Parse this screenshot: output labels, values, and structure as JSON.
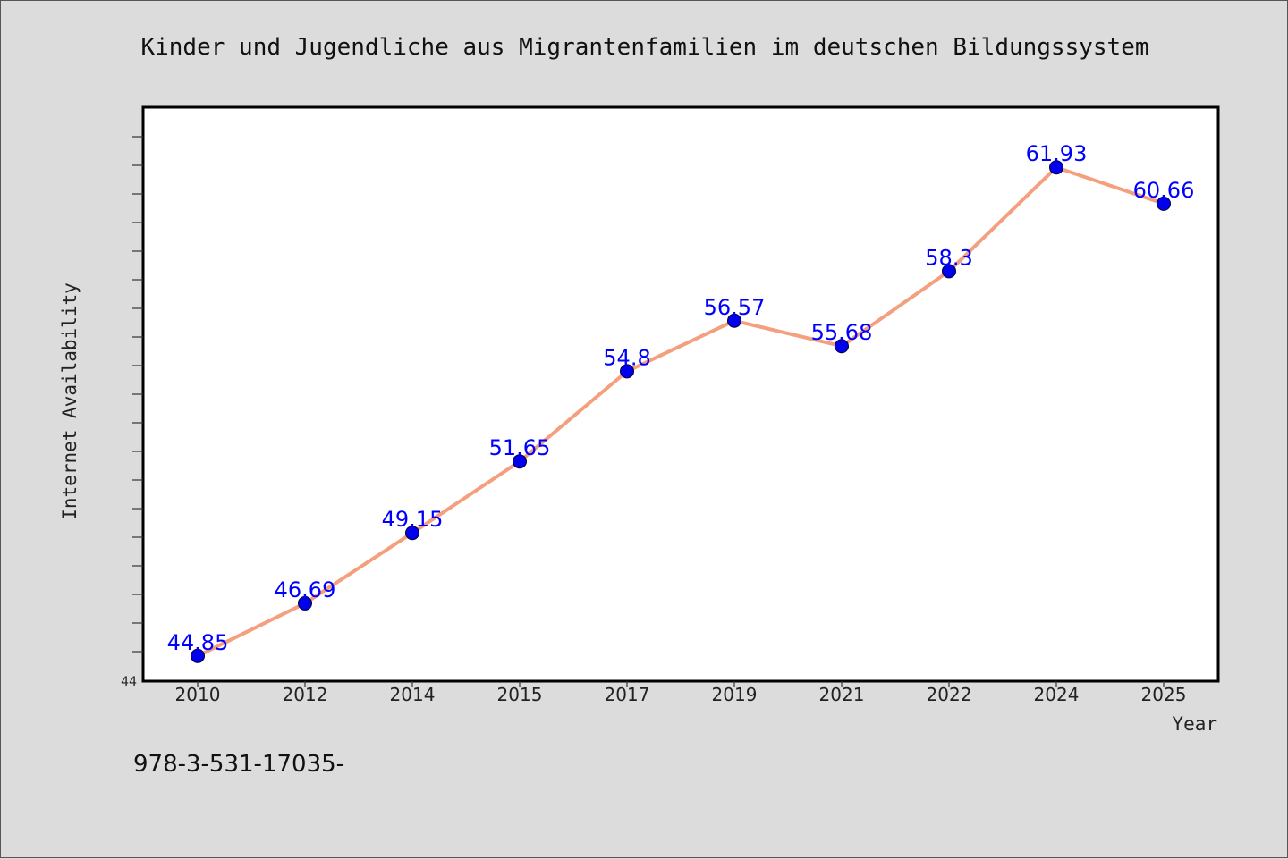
{
  "chart_data": {
    "type": "line",
    "title": "Kinder und Jugendliche aus Migrantenfamilien im deutschen Bildungssystem",
    "xlabel": "Year",
    "ylabel": "Internet Availability",
    "categories": [
      "2010",
      "2012",
      "2014",
      "2015",
      "2017",
      "2019",
      "2021",
      "2022",
      "2024",
      "2025"
    ],
    "series": [
      {
        "values": [
          44.85,
          46.69,
          49.15,
          51.65,
          54.8,
          56.57,
          55.68,
          58.3,
          61.93,
          60.66
        ],
        "labels": [
          "44.85",
          "46.69",
          "49.15",
          "51.65",
          "54.8",
          "56.57",
          "55.68",
          "58.3",
          "61.93",
          "60.66"
        ]
      }
    ],
    "ylim": [
      44,
      64
    ],
    "yticks_labeled": [
      "44"
    ],
    "grid": false,
    "legend": "none",
    "colors": {
      "line": "#f4a07f",
      "marker": "#0000ee",
      "label": "#0000ff",
      "background": "#dcdcdc",
      "plot_background": "#ffffff"
    }
  },
  "footnote": "978-3-531-17035-"
}
